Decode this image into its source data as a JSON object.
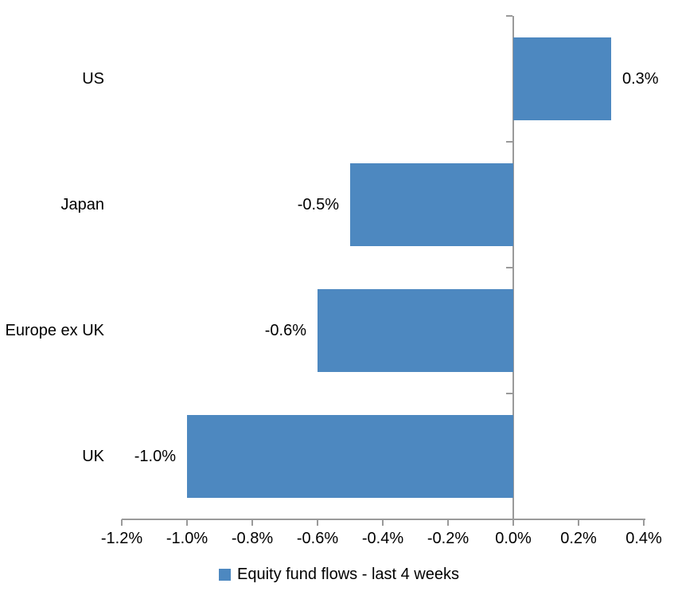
{
  "chart_data": {
    "type": "bar",
    "orientation": "horizontal",
    "title": "",
    "xlabel": "",
    "ylabel": "",
    "categories": [
      "US",
      "Japan",
      "Europe ex UK",
      "UK"
    ],
    "values": [
      0.3,
      -0.5,
      -0.6,
      -1.0
    ],
    "data_labels": [
      "0.3%",
      "-0.5%",
      "-0.6%",
      "-1.0%"
    ],
    "series_name": "Equity fund flows - last 4 weeks",
    "xlim": [
      -1.2,
      0.4
    ],
    "x_ticks": [
      -1.2,
      -1.0,
      -0.8,
      -0.6,
      -0.4,
      -0.2,
      0.0,
      0.2,
      0.4
    ],
    "x_tick_labels": [
      "-1.2%",
      "-1.0%",
      "-0.8%",
      "-0.6%",
      "-0.4%",
      "-0.2%",
      "0.0%",
      "0.2%",
      "0.4%"
    ],
    "grid": false,
    "legend_position": "bottom",
    "legend_marker": "square-icon",
    "bar_color": "#4D88C0",
    "axis_color": "#9A9A9A",
    "text_color": "#000000",
    "background_color": "#FFFFFF"
  }
}
